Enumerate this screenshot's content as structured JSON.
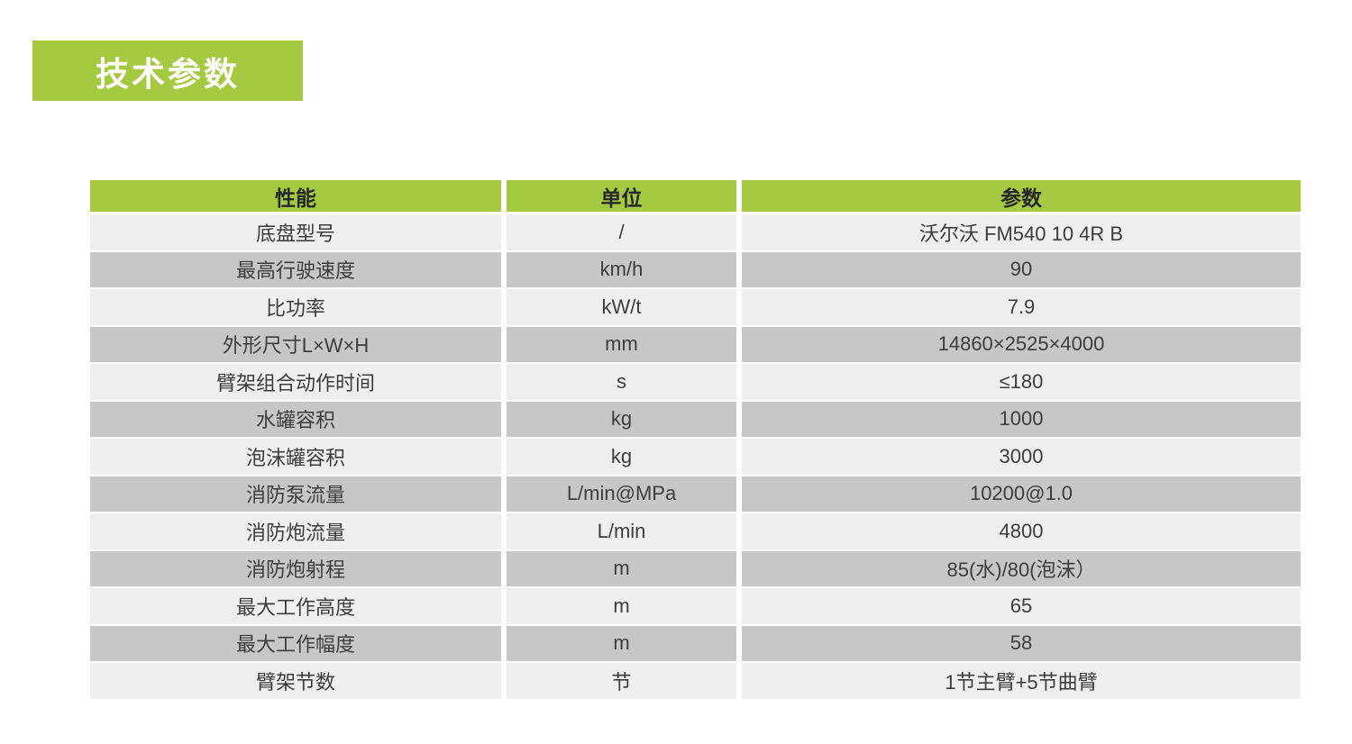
{
  "theme": {
    "accent_green": "#a5ca41",
    "badge_text": "#ffffff",
    "header_text": "#272727",
    "cell_text": "#3d3d3d",
    "row_light": "#efeff0",
    "row_dark": "#c7c7c8"
  },
  "header": {
    "title": "技术参数"
  },
  "table": {
    "columns": [
      "性能",
      "单位",
      "参数"
    ],
    "rows": [
      {
        "property": "底盘型号",
        "unit": "/",
        "value": "沃尔沃 FM540 10 4R B"
      },
      {
        "property": "最高行驶速度",
        "unit": "km/h",
        "value": "90"
      },
      {
        "property": "比功率",
        "unit": "kW/t",
        "value": "7.9"
      },
      {
        "property": "外形尺寸L×W×H",
        "unit": "mm",
        "value": "14860×2525×4000"
      },
      {
        "property": "臂架组合动作时间",
        "unit": "s",
        "value": "≤180"
      },
      {
        "property": "水罐容积",
        "unit": "kg",
        "value": "1000"
      },
      {
        "property": "泡沫罐容积",
        "unit": "kg",
        "value": "3000"
      },
      {
        "property": "消防泵流量",
        "unit": "L/min@MPa",
        "value": "10200@1.0"
      },
      {
        "property": "消防炮流量",
        "unit": "L/min",
        "value": "4800"
      },
      {
        "property": "消防炮射程",
        "unit": "m",
        "value": "85(水)/80(泡沫）"
      },
      {
        "property": "最大工作高度",
        "unit": "m",
        "value": "65"
      },
      {
        "property": "最大工作幅度",
        "unit": "m",
        "value": "58"
      },
      {
        "property": "臂架节数",
        "unit": "节",
        "value": "1节主臂+5节曲臂"
      }
    ]
  }
}
